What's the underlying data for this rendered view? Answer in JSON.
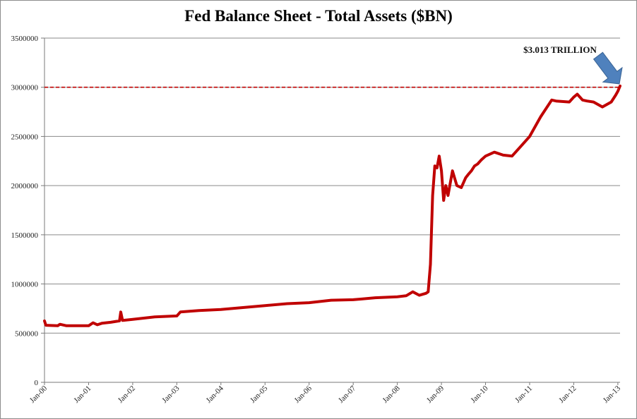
{
  "chart_data": {
    "type": "line",
    "title": "Fed Balance Sheet - Total Assets ($BN)",
    "xlabel": "",
    "ylabel": "",
    "ylim": [
      0,
      3500000
    ],
    "grid": true,
    "y_ticks": [
      "0",
      "500000",
      "1000000",
      "1500000",
      "2000000",
      "2500000",
      "3000000",
      "3500000"
    ],
    "x_ticks": [
      "Jan-00",
      "Jan-01",
      "Jan-02",
      "Jan-03",
      "Jan-04",
      "Jan-05",
      "Jan-06",
      "Jan-07",
      "Jan-08",
      "Jan-09",
      "Jan-10",
      "Jan-11",
      "Jan-12",
      "Jan-13"
    ],
    "series": [
      {
        "color": "#c00000",
        "x": [
          2000.0,
          2000.03,
          2000.3,
          2000.35,
          2000.5,
          2001.0,
          2001.1,
          2001.2,
          2001.3,
          2001.5,
          2001.7,
          2001.73,
          2001.77,
          2002.0,
          2002.5,
          2003.0,
          2003.08,
          2003.5,
          2004.0,
          2004.5,
          2005.0,
          2005.5,
          2006.0,
          2006.5,
          2007.0,
          2007.5,
          2008.0,
          2008.2,
          2008.35,
          2008.5,
          2008.65,
          2008.7,
          2008.75,
          2008.8,
          2008.85,
          2008.9,
          2008.95,
          2009.0,
          2009.05,
          2009.1,
          2009.15,
          2009.25,
          2009.35,
          2009.45,
          2009.55,
          2009.62,
          2009.68,
          2009.75,
          2009.82,
          2009.9,
          2010.0,
          2010.2,
          2010.4,
          2010.6,
          2010.8,
          2011.0,
          2011.25,
          2011.5,
          2011.6,
          2011.9,
          2012.0,
          2012.08,
          2012.2,
          2012.3,
          2012.45,
          2012.65,
          2012.85,
          2012.95,
          2013.0,
          2013.05
        ],
        "y": [
          625000,
          580000,
          575000,
          590000,
          575000,
          575000,
          605000,
          585000,
          600000,
          610000,
          625000,
          715000,
          630000,
          640000,
          665000,
          675000,
          715000,
          730000,
          740000,
          760000,
          780000,
          800000,
          810000,
          835000,
          840000,
          860000,
          870000,
          880000,
          920000,
          885000,
          905000,
          920000,
          1200000,
          1900000,
          2200000,
          2180000,
          2300000,
          2150000,
          1850000,
          2000000,
          1900000,
          2150000,
          2000000,
          1980000,
          2080000,
          2120000,
          2150000,
          2200000,
          2220000,
          2260000,
          2300000,
          2340000,
          2310000,
          2300000,
          2400000,
          2500000,
          2700000,
          2870000,
          2860000,
          2850000,
          2900000,
          2930000,
          2870000,
          2860000,
          2850000,
          2800000,
          2850000,
          2920000,
          2960000,
          3013000
        ]
      }
    ],
    "reference_line": {
      "value": 3000000,
      "color": "#c00000",
      "style": "dashed"
    },
    "annotation": {
      "text": "$3.013 TRILLION",
      "arrow_color": "#4f81bd"
    }
  }
}
